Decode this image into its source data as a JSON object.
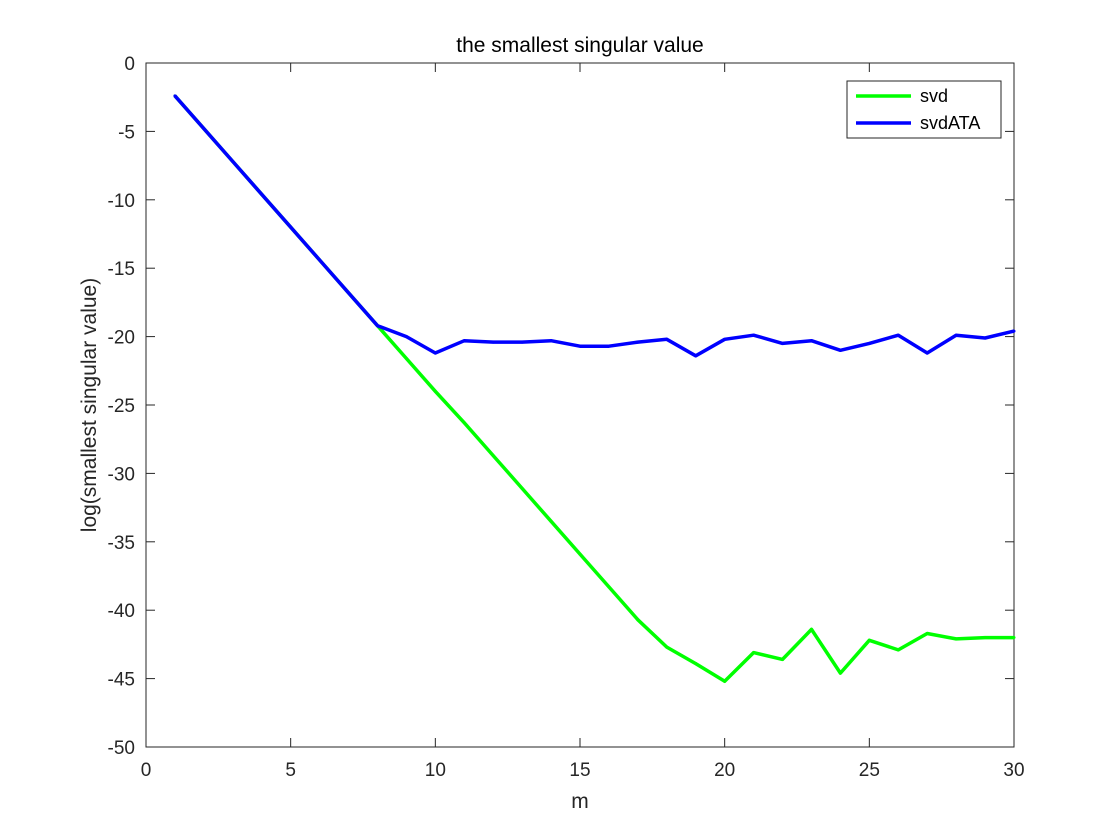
{
  "chart_data": {
    "type": "line",
    "title": "the smallest singular value",
    "xlabel": "m",
    "ylabel": "log(smallest singular value)",
    "xlim": [
      0,
      30
    ],
    "ylim": [
      -50,
      0
    ],
    "xticks": [
      0,
      5,
      10,
      15,
      20,
      25,
      30
    ],
    "yticks": [
      0,
      -5,
      -10,
      -15,
      -20,
      -25,
      -30,
      -35,
      -40,
      -45,
      -50
    ],
    "grid": false,
    "legend_position": "top-right",
    "series": [
      {
        "name": "svd",
        "color": "#00ff00",
        "x": [
          1,
          2,
          3,
          4,
          5,
          6,
          7,
          8,
          9,
          10,
          11,
          12,
          13,
          14,
          15,
          16,
          17,
          18,
          19,
          20,
          21,
          22,
          23,
          24,
          25,
          26,
          27,
          28,
          29,
          30
        ],
        "y": [
          -2.4,
          -4.8,
          -7.2,
          -9.6,
          -12.0,
          -14.4,
          -16.8,
          -19.2,
          -21.6,
          -24.0,
          -26.3,
          -28.7,
          -31.1,
          -33.5,
          -35.9,
          -38.3,
          -40.7,
          -42.7,
          -43.9,
          -45.2,
          -43.1,
          -43.6,
          -41.4,
          -44.6,
          -42.2,
          -42.9,
          -41.7,
          -42.1,
          -42.0,
          -42.0
        ]
      },
      {
        "name": "svdATA",
        "color": "#0000ff",
        "x": [
          1,
          2,
          3,
          4,
          5,
          6,
          7,
          8,
          9,
          10,
          11,
          12,
          13,
          14,
          15,
          16,
          17,
          18,
          19,
          20,
          21,
          22,
          23,
          24,
          25,
          26,
          27,
          28,
          29,
          30
        ],
        "y": [
          -2.4,
          -4.8,
          -7.2,
          -9.6,
          -12.0,
          -14.4,
          -16.8,
          -19.2,
          -20.0,
          -21.2,
          -20.3,
          -20.4,
          -20.4,
          -20.3,
          -20.7,
          -20.7,
          -20.4,
          -20.2,
          -21.4,
          -20.2,
          -19.9,
          -20.5,
          -20.3,
          -21.0,
          -20.5,
          -19.9,
          -21.2,
          -19.9,
          -20.1,
          -19.6
        ]
      }
    ]
  }
}
